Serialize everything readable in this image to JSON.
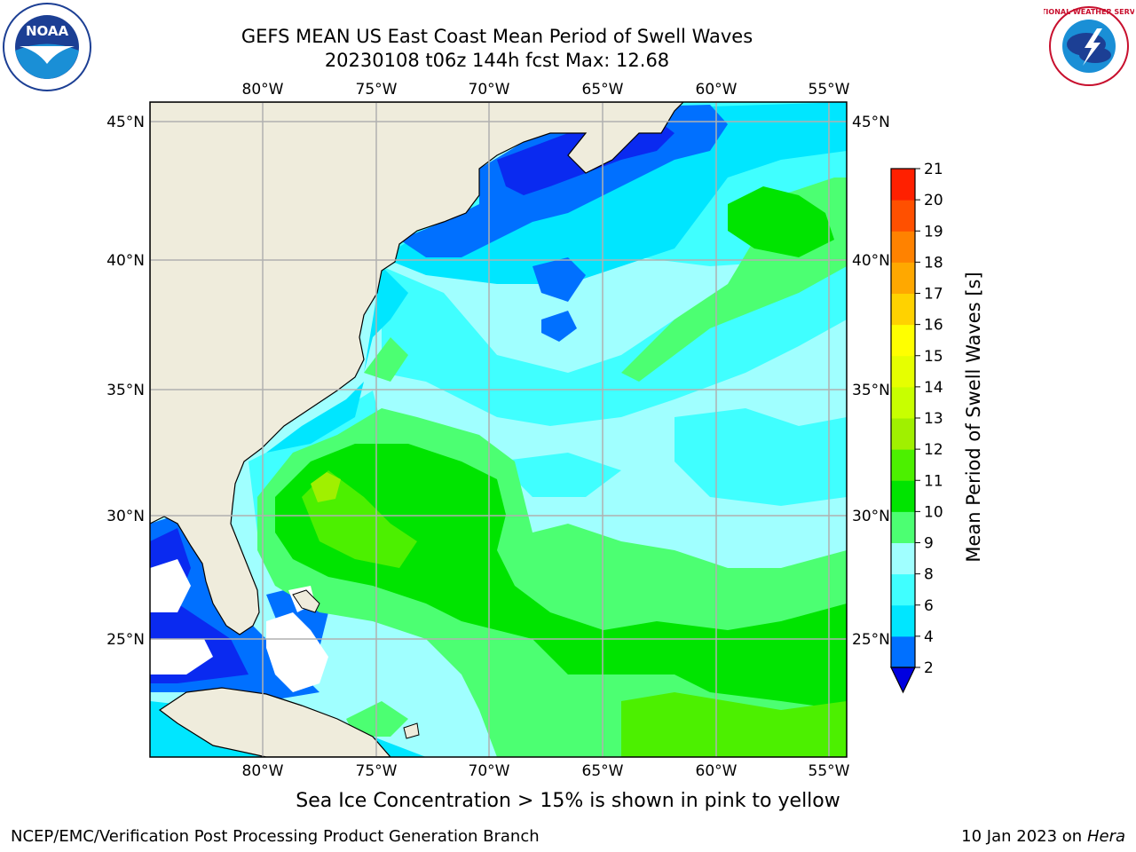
{
  "title": {
    "line1": "GEFS MEAN US East Coast Mean Period of Swell Waves",
    "line2": "20230108 t06z 144h fcst   Max: 12.68"
  },
  "map": {
    "lon_ticks": [
      "80°W",
      "75°W",
      "70°W",
      "65°W",
      "60°W",
      "55°W"
    ],
    "lat_ticks": [
      "45°N",
      "40°N",
      "35°N",
      "30°N",
      "25°N"
    ],
    "land_color": "#efecdc",
    "grid_color": "#b0b0b0"
  },
  "colorbar": {
    "label": "Mean Period of Swell Waves [s]",
    "ticks": [
      "2",
      "4",
      "6",
      "8",
      "9",
      "10",
      "11",
      "12",
      "13",
      "14",
      "15",
      "16",
      "17",
      "18",
      "19",
      "20",
      "21"
    ],
    "colors": [
      "#0a2af0",
      "#0070ff",
      "#00e6ff",
      "#40ffff",
      "#a0ffff",
      "#4cff72",
      "#00e400",
      "#4cf000",
      "#a0f000",
      "#c8ff00",
      "#e6ff00",
      "#ffff00",
      "#ffd200",
      "#ffa800",
      "#ff8200",
      "#ff5000",
      "#ff2000",
      "#ff0000"
    ],
    "under_color": "#0000e0"
  },
  "note": "Sea Ice Concentration > 15% is shown in pink to yellow",
  "footer": {
    "left": "NCEP/EMC/Verification Post Processing Product Generation Branch",
    "date": "10 Jan 2023 on ",
    "machine": "Hera"
  },
  "logos": {
    "noaa": "NOAA",
    "nws_ring": "NATIONAL WEATHER SERVICE"
  }
}
